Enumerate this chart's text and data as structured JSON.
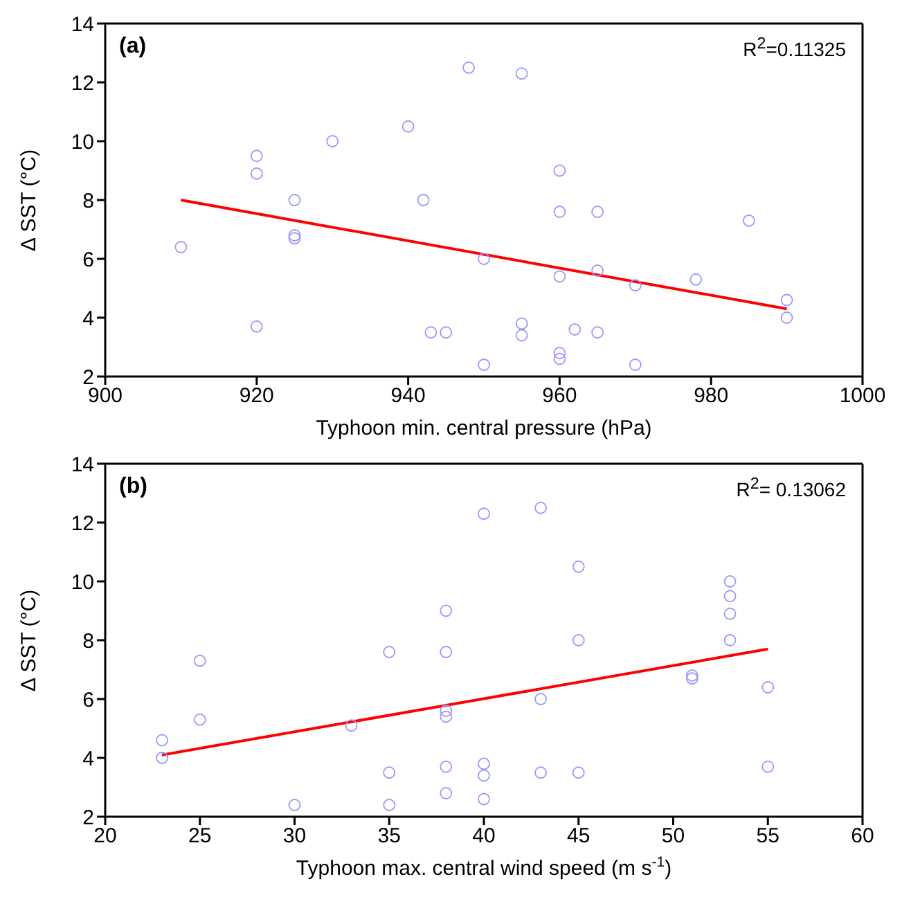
{
  "chart_data": [
    {
      "type": "scatter",
      "xlabel": "Typhoon min. central pressure (hPa)",
      "ylabel": "∆ SST (°C)",
      "annotations": [
        "(a)",
        "R$^{2}$=0.11325"
      ],
      "xlim": [
        900,
        1000
      ],
      "xticks": [
        900,
        920,
        940,
        960,
        980,
        1000
      ],
      "ylim": [
        2,
        14
      ],
      "yticks": [
        2,
        4,
        6,
        8,
        10,
        12,
        14
      ],
      "series": [
        {
          "marker": "circle",
          "color": "#9999ff",
          "x": [
            910,
            920,
            920,
            920,
            925,
            925,
            925,
            930,
            940,
            942,
            943,
            945,
            948,
            950,
            950,
            955,
            955,
            955,
            960,
            960,
            960,
            960,
            960,
            962,
            965,
            965,
            965,
            970,
            970,
            978,
            985,
            990,
            990
          ],
          "values": [
            6.4,
            9.5,
            8.9,
            3.7,
            8.0,
            6.8,
            6.7,
            10.0,
            10.5,
            8.0,
            3.5,
            3.5,
            12.5,
            6.0,
            2.4,
            12.3,
            3.8,
            3.4,
            9.0,
            7.6,
            5.4,
            2.8,
            2.6,
            3.6,
            7.6,
            5.6,
            3.5,
            5.1,
            2.4,
            5.3,
            7.3,
            4.6,
            4.0
          ]
        },
        {
          "type": "line",
          "color": "#ff0000",
          "x": [
            910,
            990
          ],
          "values": [
            8.0,
            4.3
          ]
        }
      ]
    },
    {
      "type": "scatter",
      "xlabel": "Typhoon max. central wind speed (m s$^{-1}$)",
      "ylabel": "∆ SST (°C)",
      "annotations": [
        "(b)",
        "R$^{2}$= 0.13062"
      ],
      "xlim": [
        20,
        60
      ],
      "xticks": [
        20,
        25,
        30,
        35,
        40,
        45,
        50,
        55,
        60
      ],
      "ylim": [
        2,
        14
      ],
      "yticks": [
        2,
        4,
        6,
        8,
        10,
        12,
        14
      ],
      "series": [
        {
          "marker": "circle",
          "color": "#9999ff",
          "x": [
            23,
            23,
            25,
            25,
            30,
            33,
            35,
            35,
            35,
            38,
            38,
            38,
            38,
            38,
            38,
            40,
            40,
            40,
            40,
            43,
            43,
            43,
            45,
            45,
            45,
            51,
            51,
            53,
            53,
            53,
            53,
            55,
            55
          ],
          "values": [
            4.6,
            4.0,
            7.3,
            5.3,
            2.4,
            5.1,
            7.6,
            3.5,
            2.4,
            9.0,
            7.6,
            5.6,
            5.4,
            3.7,
            2.8,
            12.3,
            3.8,
            3.4,
            2.6,
            12.5,
            6.0,
            3.5,
            10.5,
            8.0,
            3.5,
            6.8,
            6.7,
            10.0,
            9.5,
            8.9,
            8.0,
            6.4,
            3.7
          ]
        },
        {
          "type": "line",
          "color": "#ff0000",
          "x": [
            23,
            55
          ],
          "values": [
            4.1,
            7.7
          ]
        }
      ]
    }
  ]
}
